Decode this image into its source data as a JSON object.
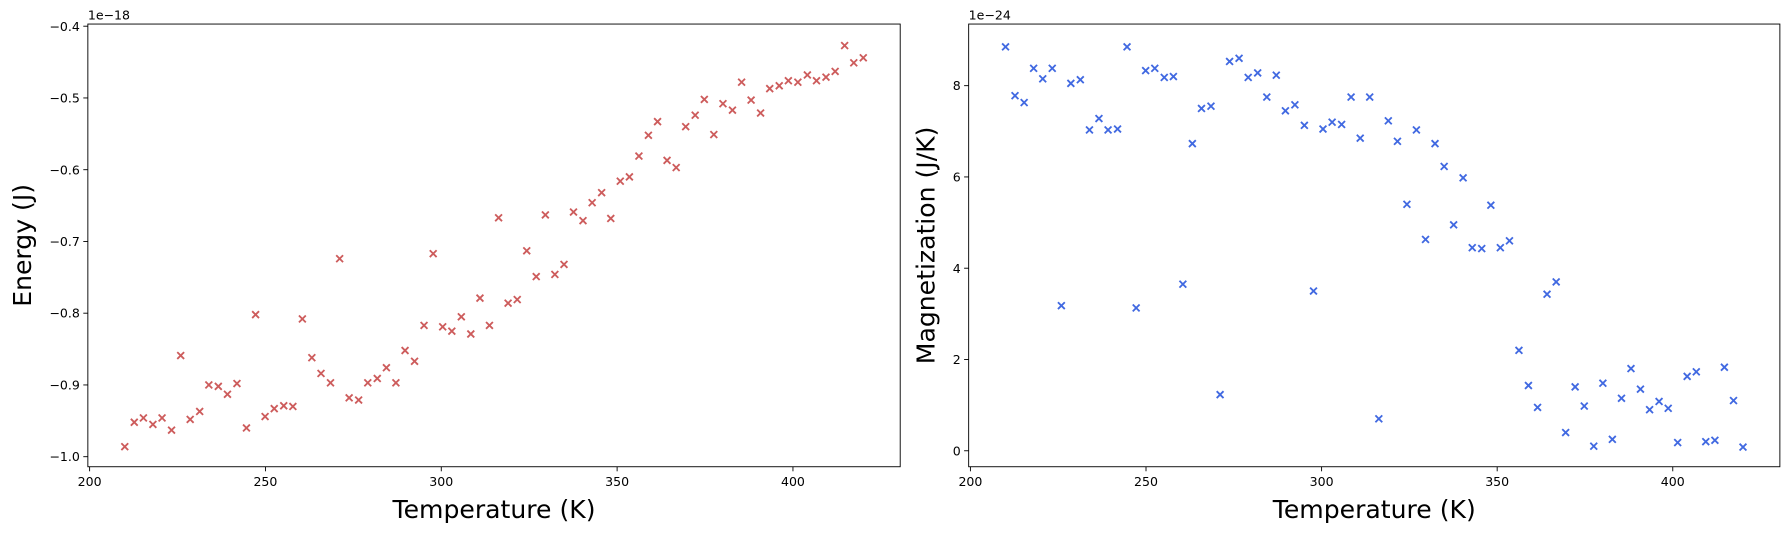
{
  "chart_data": [
    {
      "type": "scatter",
      "xlabel": "Temperature (K)",
      "ylabel": "Energy (J)",
      "offset_text": "1e−18",
      "color": "#cd5c5c",
      "marker": "x",
      "xlim": [
        199.5,
        430.5
      ],
      "ylim": [
        -1.014,
        -0.397
      ],
      "xticks": [
        200,
        250,
        300,
        350,
        400
      ],
      "yticks": [
        {
          "value": -1.0,
          "label": "−1.0"
        },
        {
          "value": -0.9,
          "label": "−0.9"
        },
        {
          "value": -0.8,
          "label": "−0.8"
        },
        {
          "value": -0.7,
          "label": "−0.7"
        },
        {
          "value": -0.6,
          "label": "−0.6"
        },
        {
          "value": -0.5,
          "label": "−0.5"
        },
        {
          "value": -0.4,
          "label": "−0.4"
        }
      ],
      "x": [
        210.0,
        212.7,
        215.3,
        218.0,
        220.6,
        223.3,
        225.9,
        228.6,
        231.3,
        233.9,
        236.6,
        239.2,
        241.9,
        244.6,
        247.2,
        249.9,
        252.5,
        255.2,
        257.8,
        260.5,
        263.2,
        265.8,
        268.5,
        271.1,
        273.8,
        276.5,
        279.1,
        281.8,
        284.4,
        287.1,
        289.7,
        292.4,
        295.1,
        297.7,
        300.4,
        303.0,
        305.7,
        308.4,
        311.0,
        313.7,
        316.3,
        319.0,
        321.6,
        324.3,
        327.0,
        329.6,
        332.3,
        334.9,
        337.6,
        340.3,
        342.9,
        345.6,
        348.2,
        350.9,
        353.5,
        356.2,
        358.9,
        361.5,
        364.2,
        366.8,
        369.5,
        372.2,
        374.8,
        377.5,
        380.1,
        382.8,
        385.4,
        388.1,
        390.8,
        393.4,
        396.1,
        398.7,
        401.4,
        404.1,
        406.7,
        409.4,
        412.0,
        414.7,
        417.3,
        420.0
      ],
      "values": [
        -0.986,
        -0.952,
        -0.946,
        -0.955,
        -0.946,
        -0.963,
        -0.859,
        -0.948,
        -0.937,
        -0.9,
        -0.902,
        -0.913,
        -0.898,
        -0.96,
        -0.802,
        -0.944,
        -0.933,
        -0.929,
        -0.93,
        -0.808,
        -0.862,
        -0.884,
        -0.897,
        -0.724,
        -0.918,
        -0.921,
        -0.897,
        -0.891,
        -0.876,
        -0.897,
        -0.852,
        -0.867,
        -0.817,
        -0.717,
        -0.819,
        -0.825,
        -0.805,
        -0.829,
        -0.779,
        -0.817,
        -0.667,
        -0.786,
        -0.781,
        -0.713,
        -0.749,
        -0.663,
        -0.746,
        -0.732,
        -0.659,
        -0.671,
        -0.646,
        -0.632,
        -0.668,
        -0.616,
        -0.61,
        -0.581,
        -0.552,
        -0.533,
        -0.587,
        -0.597,
        -0.54,
        -0.524,
        -0.502,
        -0.551,
        -0.508,
        -0.517,
        -0.478,
        -0.503,
        -0.521,
        -0.487,
        -0.483,
        -0.476,
        -0.478,
        -0.468,
        -0.476,
        -0.471,
        -0.463,
        -0.427,
        -0.451,
        -0.444
      ]
    },
    {
      "type": "scatter",
      "xlabel": "Temperature (K)",
      "ylabel": "Magnetization (J/K)",
      "offset_text": "1e−24",
      "color": "#4169e1",
      "marker": "x",
      "xlim": [
        199.5,
        430.5
      ],
      "ylim": [
        -0.35,
        9.35
      ],
      "xticks": [
        200,
        250,
        300,
        350,
        400
      ],
      "yticks": [
        0,
        2,
        4,
        6,
        8
      ],
      "x": [
        210.0,
        212.7,
        215.3,
        218.0,
        220.6,
        223.3,
        225.9,
        228.6,
        231.3,
        233.9,
        236.6,
        239.2,
        241.9,
        244.6,
        247.2,
        249.9,
        252.5,
        255.2,
        257.8,
        260.5,
        263.2,
        265.8,
        268.5,
        271.1,
        273.8,
        276.5,
        279.1,
        281.8,
        284.4,
        287.1,
        289.7,
        292.4,
        295.1,
        297.7,
        300.4,
        303.0,
        305.7,
        308.4,
        311.0,
        313.7,
        316.3,
        319.0,
        321.6,
        324.3,
        327.0,
        329.6,
        332.3,
        334.9,
        337.6,
        340.3,
        342.9,
        345.6,
        348.2,
        350.9,
        353.5,
        356.2,
        358.9,
        361.5,
        364.2,
        366.8,
        369.5,
        372.2,
        374.8,
        377.5,
        380.1,
        382.8,
        385.4,
        388.1,
        390.8,
        393.4,
        396.1,
        398.7,
        401.4,
        404.1,
        406.7,
        409.4,
        412.0,
        414.7,
        417.3,
        420.0
      ],
      "values": [
        8.85,
        7.78,
        7.63,
        8.38,
        8.15,
        8.38,
        3.18,
        8.05,
        8.13,
        7.03,
        7.28,
        7.03,
        7.05,
        8.85,
        3.13,
        8.33,
        8.38,
        8.18,
        8.2,
        3.65,
        6.73,
        7.5,
        7.55,
        1.23,
        8.53,
        8.6,
        8.18,
        8.28,
        7.75,
        8.23,
        7.45,
        7.58,
        7.13,
        3.5,
        7.05,
        7.2,
        7.15,
        7.75,
        6.85,
        7.75,
        0.7,
        7.23,
        6.78,
        5.4,
        7.03,
        4.63,
        6.73,
        6.23,
        4.95,
        5.98,
        4.45,
        4.43,
        5.38,
        4.45,
        4.6,
        2.2,
        1.43,
        0.95,
        3.43,
        3.7,
        0.4,
        1.4,
        0.98,
        0.1,
        1.48,
        0.25,
        1.15,
        1.8,
        1.35,
        0.9,
        1.08,
        0.93,
        0.18,
        1.63,
        1.73,
        0.2,
        0.23,
        1.83,
        1.1,
        0.08
      ]
    }
  ]
}
